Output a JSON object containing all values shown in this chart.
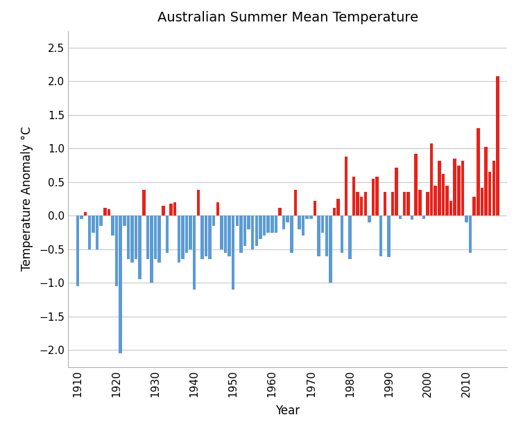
{
  "title": "Australian Summer Mean Temperature",
  "xlabel": "Year",
  "ylabel": "Temperature Anomaly °C",
  "ylim": [
    -2.25,
    2.75
  ],
  "yticks": [
    -2.0,
    -1.5,
    -1.0,
    -0.5,
    0.0,
    0.5,
    1.0,
    1.5,
    2.0,
    2.5
  ],
  "years": [
    1910,
    1911,
    1912,
    1913,
    1914,
    1915,
    1916,
    1917,
    1918,
    1919,
    1920,
    1921,
    1922,
    1923,
    1924,
    1925,
    1926,
    1927,
    1928,
    1929,
    1930,
    1931,
    1932,
    1933,
    1934,
    1935,
    1936,
    1937,
    1938,
    1939,
    1940,
    1941,
    1942,
    1943,
    1944,
    1945,
    1946,
    1947,
    1948,
    1949,
    1950,
    1951,
    1952,
    1953,
    1954,
    1955,
    1956,
    1957,
    1958,
    1959,
    1960,
    1961,
    1962,
    1963,
    1964,
    1965,
    1966,
    1967,
    1968,
    1969,
    1970,
    1971,
    1972,
    1973,
    1974,
    1975,
    1976,
    1977,
    1978,
    1979,
    1980,
    1981,
    1982,
    1983,
    1984,
    1985,
    1986,
    1987,
    1988,
    1989,
    1990,
    1991,
    1992,
    1993,
    1994,
    1995,
    1996,
    1997,
    1998,
    1999,
    2000,
    2001,
    2002,
    2003,
    2004,
    2005,
    2006,
    2007,
    2008,
    2009,
    2010,
    2011,
    2012,
    2013,
    2014,
    2015,
    2016,
    2017,
    2018
  ],
  "values": [
    -1.05,
    -0.05,
    0.05,
    -0.5,
    -0.25,
    -0.5,
    -0.15,
    0.12,
    0.1,
    -0.3,
    -1.05,
    -2.05,
    -0.15,
    -0.65,
    -0.7,
    -0.65,
    -0.95,
    0.38,
    -0.65,
    -1.0,
    -0.65,
    -0.7,
    0.15,
    -0.55,
    0.18,
    0.2,
    -0.7,
    -0.65,
    -0.55,
    -0.5,
    -1.1,
    0.38,
    -0.65,
    -0.6,
    -0.65,
    -0.15,
    0.2,
    -0.5,
    -0.55,
    -0.6,
    -1.1,
    -0.15,
    -0.55,
    -0.45,
    -0.2,
    -0.5,
    -0.45,
    -0.35,
    -0.3,
    -0.25,
    -0.25,
    -0.25,
    0.12,
    -0.2,
    -0.1,
    -0.55,
    0.38,
    -0.2,
    -0.3,
    -0.05,
    -0.05,
    0.22,
    -0.6,
    -0.25,
    -0.6,
    -1.0,
    0.12,
    0.25,
    -0.55,
    0.88,
    -0.65,
    0.58,
    0.35,
    0.28,
    0.35,
    -0.1,
    0.55,
    0.58,
    -0.6,
    0.35,
    -0.62,
    0.35,
    0.72,
    -0.05,
    0.35,
    0.35,
    -0.06,
    0.92,
    0.38,
    -0.05,
    0.35,
    1.08,
    0.45,
    0.82,
    0.62,
    0.45,
    0.22,
    0.85,
    0.75,
    0.82,
    -0.1,
    -0.55,
    0.28,
    1.3,
    0.42,
    1.02,
    0.65,
    0.82,
    2.08
  ],
  "color_positive": "#e8221a",
  "color_negative": "#5b9bd5",
  "background_color": "#ffffff",
  "grid_color": "#c8c8c8",
  "title_fontsize": 14,
  "label_fontsize": 12,
  "tick_fontsize": 11,
  "xtick_years": [
    1910,
    1920,
    1930,
    1940,
    1950,
    1960,
    1970,
    1980,
    1990,
    2000,
    2010
  ],
  "xlim": [
    1907.5,
    2020.5
  ]
}
